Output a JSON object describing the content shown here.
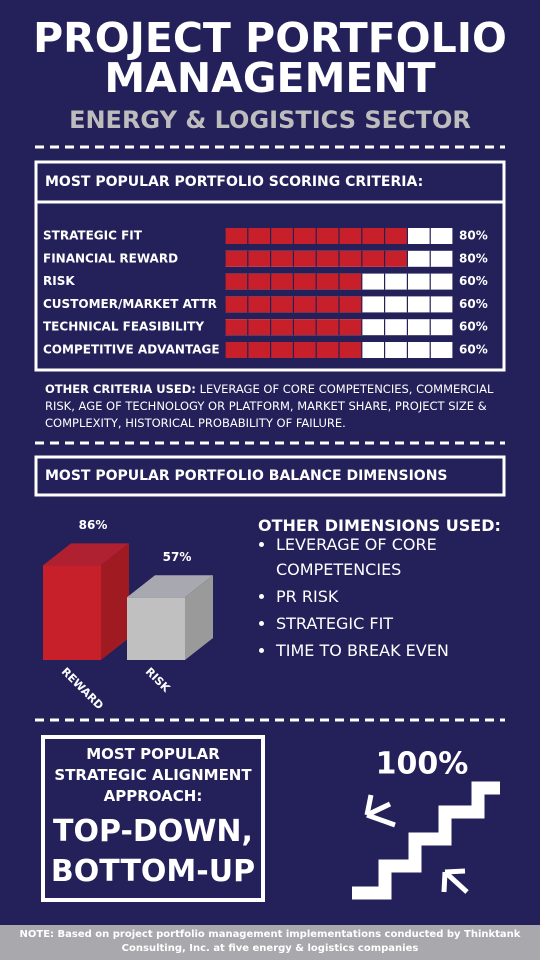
{
  "header": {
    "title": "PROJECT PORTFOLIO MANAGEMENT",
    "subtitle": "ENERGY & LOGISTICS SECTOR"
  },
  "scoring": {
    "title": "MOST POPULAR PORTFOLIO SCORING CRITERIA:",
    "categories": [
      "STRATEGIC FIT",
      "FINANCIAL REWARD",
      "RISK",
      "CUSTOMER/MARKET ATTR",
      "TECHNICAL FEASIBILITY",
      "COMPETITIVE ADVANTAGE"
    ],
    "values": [
      80,
      80,
      60,
      60,
      60,
      60
    ],
    "value_labels": [
      "80%",
      "80%",
      "60%",
      "60%",
      "60%",
      "60%"
    ],
    "xlim": [
      0,
      100
    ],
    "color": "#c8202a"
  },
  "other_criteria": {
    "label": "OTHER CRITERIA USED:",
    "text": "LEVERAGE OF CORE COMPETENCIES, COMMERCIAL RISK, AGE OF TECHNOLOGY OR PLATFORM, MARKET SHARE, PROJECT SIZE & COMPLEXITY, HISTORICAL PROBABILITY OF FAILURE."
  },
  "balance": {
    "title": "MOST POPULAR PORTFOLIO BALANCE DIMENSIONS",
    "categories": [
      "REWARD",
      "RISK"
    ],
    "values": [
      86,
      57
    ],
    "value_labels": [
      "86%",
      "57%"
    ],
    "ylim": [
      0,
      100
    ],
    "colors": [
      "#c8202a",
      "#c0c0c0"
    ],
    "other_title": "OTHER DIMENSIONS USED:",
    "other_items": [
      "LEVERAGE OF CORE COMPETENCIES",
      "PR RISK",
      "STRATEGIC FIT",
      "TIME TO BREAK EVEN"
    ]
  },
  "alignment": {
    "label": "MOST POPULAR STRATEGIC ALIGNMENT APPROACH:",
    "approach": "TOP-DOWN, BOTTOM-UP",
    "percent": "100%"
  },
  "note": "NOTE: Based on project portfolio management implementations conducted by Thinktank Consulting, Inc. at five energy & logistics companies"
}
